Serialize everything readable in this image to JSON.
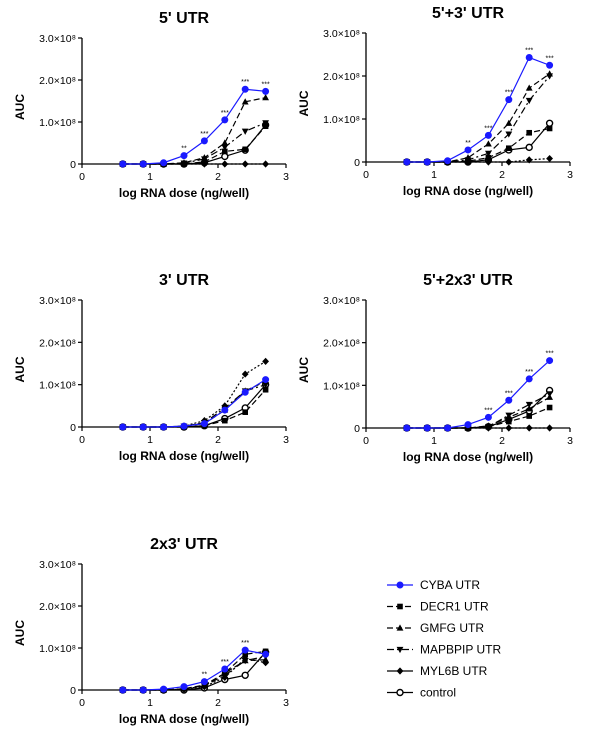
{
  "chart_data": [
    {
      "type": "line",
      "title": "5' UTR",
      "xlabel": "log RNA dose (ng/well)",
      "ylabel": "AUC",
      "xlim": [
        0,
        3
      ],
      "ylim": [
        0,
        300000000
      ],
      "xticks": [
        "0",
        "1",
        "2",
        "3"
      ],
      "yticks": [
        "0",
        "1.0×10⁸",
        "2.0×10⁸",
        "3.0×10⁸"
      ],
      "x": [
        0.6,
        0.9,
        1.2,
        1.5,
        1.8,
        2.1,
        2.4,
        2.7
      ],
      "series": [
        {
          "name": "CYBA UTR",
          "values": [
            0,
            0,
            3000000,
            20000000,
            55000000,
            105000000,
            178000000,
            173000000
          ]
        },
        {
          "name": "DECR1 UTR",
          "values": [
            0,
            0,
            0,
            0,
            5000000,
            30000000,
            35000000,
            90000000
          ]
        },
        {
          "name": "GMFG UTR",
          "values": [
            0,
            0,
            0,
            3000000,
            15000000,
            50000000,
            148000000,
            158000000
          ]
        },
        {
          "name": "MAPBPIP UTR",
          "values": [
            0,
            0,
            0,
            2000000,
            12000000,
            40000000,
            78000000,
            98000000
          ]
        },
        {
          "name": "MYL6B UTR",
          "values": [
            0,
            0,
            0,
            0,
            0,
            0,
            0,
            0
          ]
        },
        {
          "name": "control",
          "values": [
            0,
            0,
            0,
            0,
            3000000,
            18000000,
            33000000,
            93000000
          ]
        }
      ],
      "annotations": [
        {
          "x": 1.5,
          "label": "**"
        },
        {
          "x": 1.8,
          "label": "***"
        },
        {
          "x": 2.1,
          "label": "***"
        },
        {
          "x": 2.4,
          "label": "***"
        },
        {
          "x": 2.7,
          "label": "***"
        }
      ]
    },
    {
      "type": "line",
      "title": "5'+3' UTR",
      "xlabel": "log RNA dose (ng/well)",
      "ylabel": "AUC",
      "xlim": [
        0,
        3
      ],
      "ylim": [
        0,
        300000000
      ],
      "xticks": [
        "0",
        "1",
        "2",
        "3"
      ],
      "yticks": [
        "0",
        "1.0×10⁸",
        "2.0×10⁸",
        "3.0×10⁸"
      ],
      "x": [
        0.6,
        0.9,
        1.2,
        1.5,
        1.8,
        2.1,
        2.4,
        2.7
      ],
      "series": [
        {
          "name": "CYBA UTR",
          "values": [
            0,
            0,
            3000000,
            28000000,
            62000000,
            145000000,
            243000000,
            225000000
          ]
        },
        {
          "name": "DECR1 UTR",
          "values": [
            0,
            0,
            0,
            2000000,
            10000000,
            32000000,
            68000000,
            78000000
          ]
        },
        {
          "name": "GMFG UTR",
          "values": [
            0,
            0,
            0,
            10000000,
            42000000,
            90000000,
            172000000,
            205000000
          ]
        },
        {
          "name": "MAPBPIP UTR",
          "values": [
            0,
            0,
            0,
            5000000,
            20000000,
            65000000,
            143000000,
            200000000
          ]
        },
        {
          "name": "MYL6B UTR",
          "values": [
            0,
            0,
            0,
            0,
            0,
            0,
            5000000,
            8000000
          ]
        },
        {
          "name": "control",
          "values": [
            0,
            0,
            0,
            0,
            5000000,
            28000000,
            34000000,
            90000000
          ]
        }
      ],
      "annotations": [
        {
          "x": 1.5,
          "label": "**"
        },
        {
          "x": 1.8,
          "label": "***"
        },
        {
          "x": 2.1,
          "label": "***"
        },
        {
          "x": 2.4,
          "label": "***"
        },
        {
          "x": 2.7,
          "label": "***"
        }
      ]
    },
    {
      "type": "line",
      "title": "3' UTR",
      "xlabel": "log RNA dose (ng/well)",
      "ylabel": "AUC",
      "xlim": [
        0,
        3
      ],
      "ylim": [
        0,
        300000000
      ],
      "xticks": [
        "0",
        "1",
        "2",
        "3"
      ],
      "yticks": [
        "0",
        "1.0×10⁸",
        "2.0×10⁸",
        "3.0×10⁸"
      ],
      "x": [
        0.6,
        0.9,
        1.2,
        1.5,
        1.8,
        2.1,
        2.4,
        2.7
      ],
      "series": [
        {
          "name": "CYBA UTR",
          "values": [
            0,
            0,
            0,
            2000000,
            8000000,
            40000000,
            82000000,
            112000000
          ]
        },
        {
          "name": "DECR1 UTR",
          "values": [
            0,
            0,
            0,
            0,
            3000000,
            15000000,
            35000000,
            88000000
          ]
        },
        {
          "name": "GMFG UTR",
          "values": [
            0,
            0,
            0,
            2000000,
            8000000,
            40000000,
            85000000,
            108000000
          ]
        },
        {
          "name": "MAPBPIP UTR",
          "values": [
            0,
            0,
            0,
            2000000,
            10000000,
            45000000,
            85000000,
            100000000
          ]
        },
        {
          "name": "MYL6B UTR",
          "values": [
            0,
            0,
            0,
            2000000,
            15000000,
            50000000,
            125000000,
            155000000
          ]
        },
        {
          "name": "control",
          "values": [
            0,
            0,
            0,
            0,
            3000000,
            20000000,
            45000000,
            100000000
          ]
        }
      ],
      "annotations": []
    },
    {
      "type": "line",
      "title": "5'+2x3' UTR",
      "xlabel": "log RNA dose (ng/well)",
      "ylabel": "AUC",
      "xlim": [
        0,
        3
      ],
      "ylim": [
        0,
        300000000
      ],
      "xticks": [
        "0",
        "1",
        "2",
        "3"
      ],
      "yticks": [
        "0",
        "1.0×10⁸",
        "2.0×10⁸",
        "3.0×10⁸"
      ],
      "x": [
        0.6,
        0.9,
        1.2,
        1.5,
        1.8,
        2.1,
        2.4,
        2.7
      ],
      "series": [
        {
          "name": "CYBA UTR",
          "values": [
            0,
            0,
            0,
            8000000,
            25000000,
            65000000,
            115000000,
            158000000
          ]
        },
        {
          "name": "DECR1 UTR",
          "values": [
            0,
            0,
            0,
            0,
            3000000,
            15000000,
            28000000,
            48000000
          ]
        },
        {
          "name": "GMFG UTR",
          "values": [
            0,
            0,
            0,
            0,
            5000000,
            25000000,
            45000000,
            72000000
          ]
        },
        {
          "name": "MAPBPIP UTR",
          "values": [
            0,
            0,
            0,
            0,
            3000000,
            30000000,
            55000000,
            80000000
          ]
        },
        {
          "name": "MYL6B UTR",
          "values": [
            0,
            0,
            0,
            0,
            0,
            0,
            0,
            0
          ]
        },
        {
          "name": "control",
          "values": [
            0,
            0,
            0,
            0,
            3000000,
            20000000,
            40000000,
            88000000
          ]
        }
      ],
      "annotations": [
        {
          "x": 1.8,
          "label": "***"
        },
        {
          "x": 2.1,
          "label": "***"
        },
        {
          "x": 2.4,
          "label": "***"
        },
        {
          "x": 2.7,
          "label": "***"
        }
      ]
    },
    {
      "type": "line",
      "title": "2x3' UTR",
      "xlabel": "log RNA dose (ng/well)",
      "ylabel": "AUC",
      "xlim": [
        0,
        3
      ],
      "ylim": [
        0,
        300000000
      ],
      "xticks": [
        "0",
        "1",
        "2",
        "3"
      ],
      "yticks": [
        "0",
        "1.0×10⁸",
        "2.0×10⁸",
        "3.0×10⁸"
      ],
      "x": [
        0.6,
        0.9,
        1.2,
        1.5,
        1.8,
        2.1,
        2.4,
        2.7
      ],
      "series": [
        {
          "name": "CYBA UTR",
          "values": [
            0,
            0,
            2000000,
            8000000,
            20000000,
            50000000,
            95000000,
            85000000
          ]
        },
        {
          "name": "DECR1 UTR",
          "values": [
            0,
            0,
            0,
            3000000,
            10000000,
            40000000,
            85000000,
            92000000
          ]
        },
        {
          "name": "GMFG UTR",
          "values": [
            0,
            0,
            0,
            3000000,
            12000000,
            40000000,
            70000000,
            72000000
          ]
        },
        {
          "name": "MAPBPIP UTR",
          "values": [
            0,
            0,
            0,
            2000000,
            10000000,
            35000000,
            70000000,
            80000000
          ]
        },
        {
          "name": "MYL6B UTR",
          "values": [
            0,
            0,
            0,
            2000000,
            8000000,
            30000000,
            75000000,
            65000000
          ]
        },
        {
          "name": "control",
          "values": [
            0,
            0,
            0,
            0,
            5000000,
            25000000,
            35000000,
            90000000
          ]
        }
      ],
      "annotations": [
        {
          "x": 1.8,
          "label": "**"
        },
        {
          "x": 2.1,
          "label": "***"
        },
        {
          "x": 2.4,
          "label": "***"
        }
      ]
    }
  ],
  "legend": [
    {
      "name": "CYBA UTR",
      "color": "#1a1aff",
      "marker": "circle",
      "dash": "solid"
    },
    {
      "name": "DECR1 UTR",
      "color": "#000000",
      "marker": "square",
      "dash": "dash"
    },
    {
      "name": "GMFG UTR",
      "color": "#000000",
      "marker": "triangle-up",
      "dash": "dash-dot"
    },
    {
      "name": "MAPBPIP UTR",
      "color": "#000000",
      "marker": "triangle-down",
      "dash": "dot"
    },
    {
      "name": "MYL6B UTR",
      "color": "#000000",
      "marker": "diamond",
      "dash": "solid"
    },
    {
      "name": "control",
      "color": "#000000",
      "marker": "open-circle",
      "dash": "solid"
    }
  ]
}
